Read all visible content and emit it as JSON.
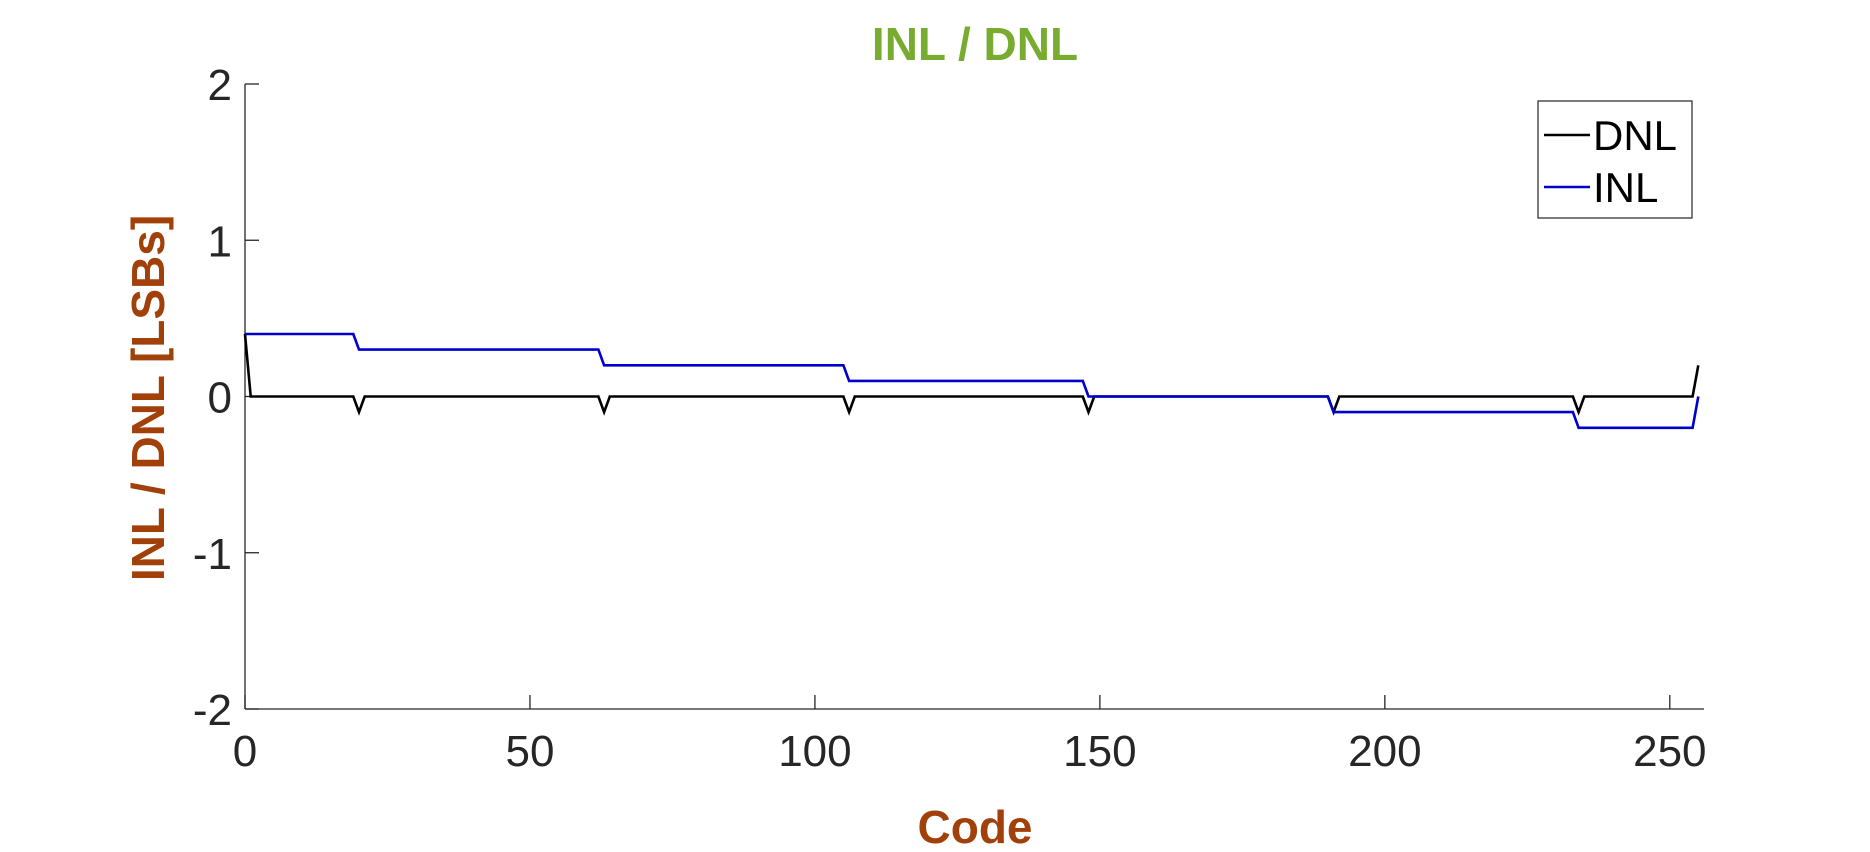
{
  "chart_data": {
    "type": "line",
    "title": "INL / DNL",
    "xlabel": "Code",
    "ylabel": "INL / DNL [LSBs]",
    "xlim": [
      0,
      256
    ],
    "ylim": [
      -2,
      2
    ],
    "xticks": [
      0,
      50,
      100,
      150,
      200,
      250
    ],
    "yticks": [
      -2,
      -1,
      0,
      1,
      2
    ],
    "xtick_labels": [
      "0",
      "50",
      "100",
      "150",
      "200",
      "250"
    ],
    "ytick_labels": [
      "-2",
      "-1",
      "0",
      "1",
      "2"
    ],
    "grid": false,
    "legend_position": "top-right",
    "colors": {
      "title": "#77AC30",
      "axis_labels": "#A2400A",
      "axes": "#262626"
    },
    "series": [
      {
        "name": "DNL",
        "color": "#000000",
        "x": [
          0,
          1,
          19,
          20,
          21,
          62,
          63,
          64,
          105,
          106,
          107,
          147,
          148,
          149,
          190,
          191,
          192,
          233,
          234,
          235,
          254,
          255
        ],
        "y": [
          0.4,
          0,
          0,
          -0.1,
          0,
          0,
          -0.1,
          0,
          0,
          -0.1,
          0,
          0,
          -0.1,
          0,
          0,
          -0.1,
          0,
          0,
          -0.1,
          0,
          0,
          0.2
        ]
      },
      {
        "name": "INL",
        "color": "#0000CD",
        "x": [
          0,
          19,
          20,
          62,
          63,
          105,
          106,
          147,
          148,
          190,
          191,
          233,
          234,
          254,
          255
        ],
        "y": [
          0.4,
          0.4,
          0.3,
          0.3,
          0.2,
          0.2,
          0.1,
          0.1,
          0.0,
          0.0,
          -0.1,
          -0.1,
          -0.2,
          -0.2,
          0.0
        ]
      }
    ]
  }
}
